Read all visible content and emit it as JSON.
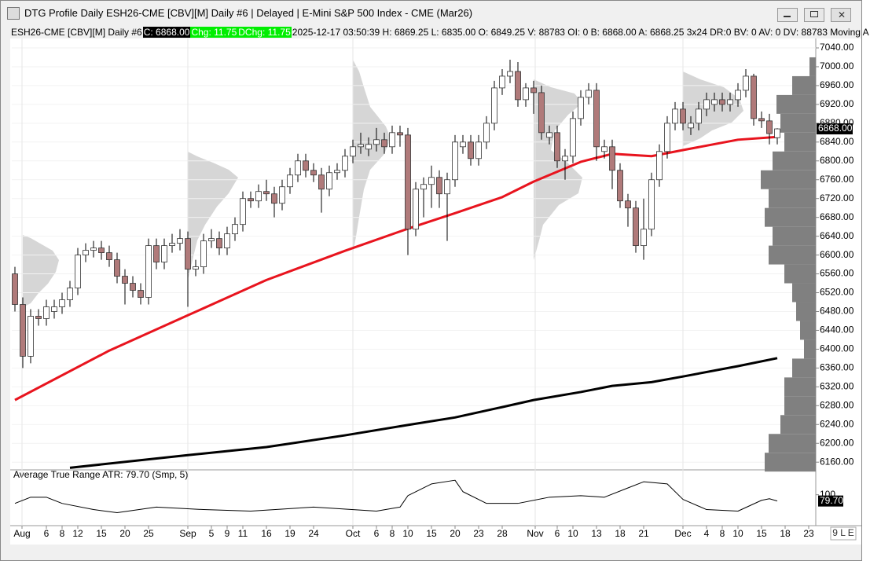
{
  "window": {
    "title": "DTG Profile Daily ESH26-CME [CBV][M]  Daily #6 | Delayed | E-Mini S&P 500 Index - CME (Mar26)",
    "status": "9 L E"
  },
  "info_bar": {
    "symbol": "ESH26-CME [CBV][M]  Daily #6",
    "close": "C: 6868.00",
    "change": "Chg: 11.75",
    "dchange": "DChg: 11.75",
    "details": "2025-12-17 03:50:39 H: 6869.25 L: 6835.00 O: 6849.25 V: 88783 OI: 0 B: 6868.00 A: 6868.25 3x24 DR:0 BV: 0 AV: 0 DV: 88783 Moving A"
  },
  "chart_data": [
    {
      "type": "candlestick",
      "x": [
        0,
        1,
        2,
        3,
        4,
        5,
        6,
        7,
        8,
        9,
        10,
        11,
        12,
        13,
        14,
        15,
        16,
        17,
        18,
        19,
        20,
        21,
        22,
        23,
        24,
        25,
        26,
        27,
        28,
        29,
        30,
        31,
        32,
        33,
        34,
        35,
        36,
        37,
        38,
        39,
        40,
        41,
        42,
        43,
        44,
        45,
        46,
        47,
        48,
        49,
        50,
        51,
        52,
        53,
        54,
        55,
        56,
        57,
        58,
        59,
        60,
        61,
        62,
        63,
        64,
        65,
        66,
        67,
        68,
        69,
        70,
        71,
        72,
        73,
        74,
        75,
        76,
        77,
        78,
        79,
        80,
        81,
        82,
        83,
        84,
        85,
        86,
        87,
        88,
        89,
        90,
        91,
        92,
        93,
        94,
        95,
        96,
        97
      ],
      "open": [
        6560,
        6495,
        6385,
        6470,
        6465,
        6480,
        6490,
        6505,
        6530,
        6600,
        6610,
        6615,
        6605,
        6590,
        6555,
        6540,
        6525,
        6510,
        6620,
        6585,
        6620,
        6625,
        6635,
        6570,
        6575,
        6630,
        6635,
        6615,
        6645,
        6665,
        6720,
        6715,
        6735,
        6730,
        6710,
        6745,
        6770,
        6800,
        6780,
        6770,
        6740,
        6775,
        6780,
        6810,
        6830,
        6825,
        6835,
        6845,
        6830,
        6860,
        6855,
        6655,
        6740,
        6750,
        6765,
        6730,
        6760,
        6830,
        6840,
        6805,
        6840,
        6880,
        6955,
        6980,
        6990,
        6930,
        6955,
        6945,
        6850,
        6860,
        6800,
        6810,
        6890,
        6935,
        6950,
        6820,
        6830,
        6780,
        6715,
        6700,
        6620,
        6655,
        6760,
        6820,
        6880,
        6910,
        6870,
        6880,
        6910,
        6920,
        6930,
        6920,
        6930,
        6950,
        6980,
        6890,
        6885,
        6849.25
      ],
      "high": [
        6575,
        6510,
        6485,
        6485,
        6505,
        6505,
        6520,
        6545,
        6615,
        6625,
        6630,
        6630,
        6620,
        6605,
        6570,
        6555,
        6540,
        6635,
        6635,
        6635,
        6645,
        6655,
        6650,
        6590,
        6645,
        6655,
        6650,
        6660,
        6680,
        6735,
        6735,
        6750,
        6760,
        6745,
        6760,
        6785,
        6815,
        6815,
        6795,
        6785,
        6790,
        6795,
        6825,
        6845,
        6860,
        6850,
        6870,
        6860,
        6875,
        6875,
        6870,
        6755,
        6765,
        6790,
        6780,
        6775,
        6855,
        6855,
        6855,
        6855,
        6895,
        6970,
        6995,
        7015,
        7010,
        6965,
        6970,
        6960,
        6875,
        6875,
        6825,
        6905,
        6950,
        6965,
        6965,
        6845,
        6845,
        6795,
        6730,
        6715,
        6720,
        6775,
        6835,
        6895,
        6925,
        6925,
        6895,
        6925,
        6945,
        6945,
        6945,
        6945,
        6965,
        6995,
        6985,
        6905,
        6900,
        6869.25
      ],
      "low": [
        6480,
        6360,
        6370,
        6450,
        6450,
        6465,
        6475,
        6490,
        6515,
        6585,
        6595,
        6590,
        6575,
        6540,
        6495,
        6510,
        6495,
        6495,
        6570,
        6570,
        6605,
        6610,
        6490,
        6555,
        6560,
        6615,
        6600,
        6600,
        6630,
        6650,
        6700,
        6700,
        6715,
        6680,
        6695,
        6730,
        6755,
        6765,
        6755,
        6690,
        6725,
        6760,
        6765,
        6795,
        6815,
        6810,
        6820,
        6815,
        6815,
        6830,
        6600,
        6640,
        6680,
        6700,
        6700,
        6630,
        6745,
        6815,
        6790,
        6790,
        6825,
        6865,
        6940,
        6965,
        6915,
        6915,
        6900,
        6845,
        6835,
        6785,
        6760,
        6795,
        6875,
        6920,
        6800,
        6805,
        6740,
        6700,
        6660,
        6605,
        6590,
        6640,
        6745,
        6805,
        6865,
        6865,
        6855,
        6865,
        6895,
        6905,
        6905,
        6905,
        6915,
        6935,
        6875,
        6870,
        6835,
        6835
      ],
      "close": [
        6495,
        6385,
        6470,
        6465,
        6490,
        6490,
        6505,
        6530,
        6600,
        6610,
        6615,
        6605,
        6590,
        6555,
        6540,
        6525,
        6510,
        6620,
        6585,
        6620,
        6625,
        6635,
        6570,
        6575,
        6630,
        6635,
        6615,
        6645,
        6665,
        6720,
        6715,
        6735,
        6730,
        6710,
        6745,
        6770,
        6800,
        6780,
        6770,
        6740,
        6775,
        6780,
        6810,
        6830,
        6835,
        6835,
        6845,
        6830,
        6860,
        6855,
        6655,
        6740,
        6750,
        6765,
        6730,
        6760,
        6840,
        6840,
        6805,
        6840,
        6880,
        6955,
        6980,
        6990,
        6930,
        6955,
        6945,
        6860,
        6860,
        6800,
        6810,
        6890,
        6935,
        6950,
        6830,
        6830,
        6780,
        6715,
        6700,
        6620,
        6655,
        6760,
        6820,
        6880,
        6910,
        6880,
        6880,
        6910,
        6930,
        6930,
        6920,
        6930,
        6950,
        6980,
        6890,
        6885,
        6858,
        6868
      ],
      "up_color": "#ffffff",
      "down_color": "#b07a7a",
      "last_label": {
        "value": 6868,
        "label": "6868.00"
      },
      "series": [
        {
          "color": "#e8141e",
          "x": [
            0,
            12,
            22,
            32,
            42,
            50,
            56,
            62,
            66,
            72,
            76,
            81,
            85,
            92,
            97
          ],
          "values": [
            6292,
            6397,
            6472,
            6547,
            6609,
            6656,
            6689,
            6723,
            6756,
            6798,
            6815,
            6810,
            6823,
            6845,
            6851
          ]
        },
        {
          "color": "#000000",
          "x": [
            7,
            22,
            32,
            42,
            50,
            56,
            62,
            66,
            72,
            76,
            81,
            85,
            92,
            97
          ],
          "values": [
            6148,
            6175,
            6192,
            6217,
            6239,
            6255,
            6277,
            6292,
            6309,
            6322,
            6330,
            6342,
            6364,
            6381
          ]
        }
      ],
      "volume_profile": {
        "color": "#808080",
        "levels": [
          7000,
          6960,
          6920,
          6880,
          6840,
          6800,
          6760,
          6720,
          6680,
          6640,
          6600,
          6560,
          6520,
          6480,
          6440,
          6400,
          6360,
          6320,
          6280,
          6240,
          6200,
          6160
        ],
        "volumes": [
          8,
          30,
          50,
          45,
          40,
          55,
          70,
          60,
          65,
          55,
          60,
          40,
          30,
          25,
          20,
          15,
          30,
          40,
          40,
          45,
          60,
          65
        ]
      },
      "xlim": [
        -0.4,
        101.9
      ],
      "ylim": [
        6147,
        7060
      ],
      "grid": true,
      "yticks": [
        {
          "value": 7040,
          "label": "7040.00"
        },
        {
          "value": 7000,
          "label": "7000.00"
        },
        {
          "value": 6960,
          "label": "6960.00"
        },
        {
          "value": 6920,
          "label": "6920.00"
        },
        {
          "value": 6880,
          "label": "6880.00"
        },
        {
          "value": 6840,
          "label": "6840.00"
        },
        {
          "value": 6800,
          "label": "6800.00"
        },
        {
          "value": 6760,
          "label": "6760.00"
        },
        {
          "value": 6720,
          "label": "6720.00"
        },
        {
          "value": 6680,
          "label": "6680.00"
        },
        {
          "value": 6640,
          "label": "6640.00"
        },
        {
          "value": 6600,
          "label": "6600.00"
        },
        {
          "value": 6560,
          "label": "6560.00"
        },
        {
          "value": 6520,
          "label": "6520.00"
        },
        {
          "value": 6480,
          "label": "6480.00"
        },
        {
          "value": 6440,
          "label": "6440.00"
        },
        {
          "value": 6400,
          "label": "6400.00"
        },
        {
          "value": 6360,
          "label": "6360.00"
        },
        {
          "value": 6320,
          "label": "6320.00"
        },
        {
          "value": 6280,
          "label": "6280.00"
        },
        {
          "value": 6240,
          "label": "6240.00"
        },
        {
          "value": 6200,
          "label": "6200.00"
        },
        {
          "value": 6160,
          "label": "6160.00"
        }
      ],
      "xticks": [
        {
          "value": 0.9,
          "label": "Aug"
        },
        {
          "value": 4,
          "label": "6"
        },
        {
          "value": 6,
          "label": "8"
        },
        {
          "value": 8,
          "label": "12"
        },
        {
          "value": 11,
          "label": "15"
        },
        {
          "value": 14,
          "label": "20"
        },
        {
          "value": 17,
          "label": "25"
        },
        {
          "value": 22,
          "label": "Sep"
        },
        {
          "value": 25,
          "label": "5"
        },
        {
          "value": 27,
          "label": "9"
        },
        {
          "value": 29,
          "label": "11"
        },
        {
          "value": 32,
          "label": "16"
        },
        {
          "value": 35,
          "label": "19"
        },
        {
          "value": 38,
          "label": "24"
        },
        {
          "value": 43,
          "label": "Oct"
        },
        {
          "value": 46,
          "label": "6"
        },
        {
          "value": 48,
          "label": "8"
        },
        {
          "value": 50,
          "label": "10"
        },
        {
          "value": 53,
          "label": "15"
        },
        {
          "value": 56,
          "label": "20"
        },
        {
          "value": 59,
          "label": "23"
        },
        {
          "value": 62,
          "label": "28"
        },
        {
          "value": 66.2,
          "label": "Nov"
        },
        {
          "value": 69,
          "label": "6"
        },
        {
          "value": 71,
          "label": "10"
        },
        {
          "value": 74,
          "label": "13"
        },
        {
          "value": 77,
          "label": "18"
        },
        {
          "value": 80,
          "label": "21"
        },
        {
          "value": 85,
          "label": "Dec"
        },
        {
          "value": 88,
          "label": "4"
        },
        {
          "value": 90,
          "label": "8"
        },
        {
          "value": 92,
          "label": "10"
        },
        {
          "value": 95,
          "label": "15"
        },
        {
          "value": 98,
          "label": "18"
        },
        {
          "value": 101,
          "label": "23"
        }
      ]
    },
    {
      "type": "line",
      "title": "Average True Range  ATR: 79.70  (Smp, 5)",
      "series": [
        {
          "color": "#000000",
          "x": [
            0,
            2,
            4,
            6,
            10,
            13,
            18,
            24,
            30,
            38,
            46,
            49,
            50,
            53,
            56,
            57,
            60,
            64,
            68,
            72,
            75,
            78,
            80,
            83,
            85,
            88,
            92,
            95,
            96,
            97
          ],
          "values": [
            72,
            92,
            92,
            72,
            52,
            42,
            60,
            52,
            47,
            60,
            47,
            60,
            97,
            135,
            147,
            110,
            72,
            72,
            92,
            97,
            92,
            122,
            142,
            135,
            85,
            52,
            47,
            82,
            87,
            79.7
          ]
        }
      ],
      "last_label": {
        "value": 79.7,
        "label": "79.70"
      },
      "ylim": [
        0,
        178
      ],
      "yticks": [
        100
      ]
    }
  ]
}
